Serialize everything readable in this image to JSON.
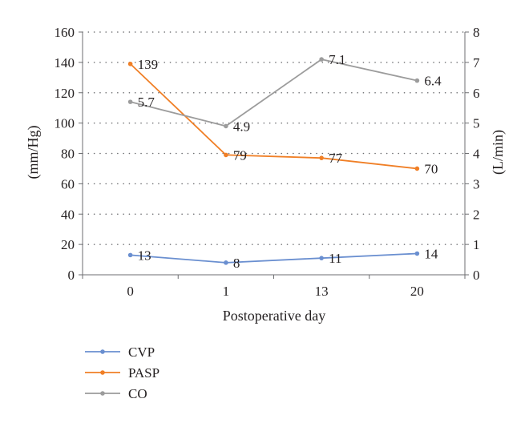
{
  "chart_data": {
    "type": "line",
    "categories": [
      "0",
      "1",
      "13",
      "20"
    ],
    "xlabel": "Postoperative day",
    "ylabel_left": "(mm/Hg)",
    "ylabel_right": "(L/min)",
    "ylim_left": [
      0,
      160
    ],
    "ylim_right": [
      0,
      8
    ],
    "yticks_left": [
      "0",
      "20",
      "40",
      "60",
      "80",
      "100",
      "120",
      "140",
      "160"
    ],
    "yticks_right": [
      "0",
      "1",
      "2",
      "3",
      "4",
      "5",
      "6",
      "7",
      "8"
    ],
    "grid": "horizontal dotted",
    "legend_position": "bottom-left",
    "series": [
      {
        "name": "CVP",
        "axis": "left",
        "color": "#6a8fd0",
        "values": [
          13,
          8,
          11,
          14
        ],
        "labels": [
          "13",
          "8",
          "11",
          "14"
        ]
      },
      {
        "name": "PASP",
        "axis": "left",
        "color": "#f07f26",
        "values": [
          139,
          79,
          77,
          70
        ],
        "labels": [
          "139",
          "79",
          "77",
          "70"
        ]
      },
      {
        "name": "CO",
        "axis": "right",
        "color": "#9c9c9c",
        "values": [
          5.7,
          4.9,
          7.1,
          6.4
        ],
        "labels": [
          "5.7",
          "4.9",
          "7.1",
          "6.4"
        ]
      }
    ]
  }
}
